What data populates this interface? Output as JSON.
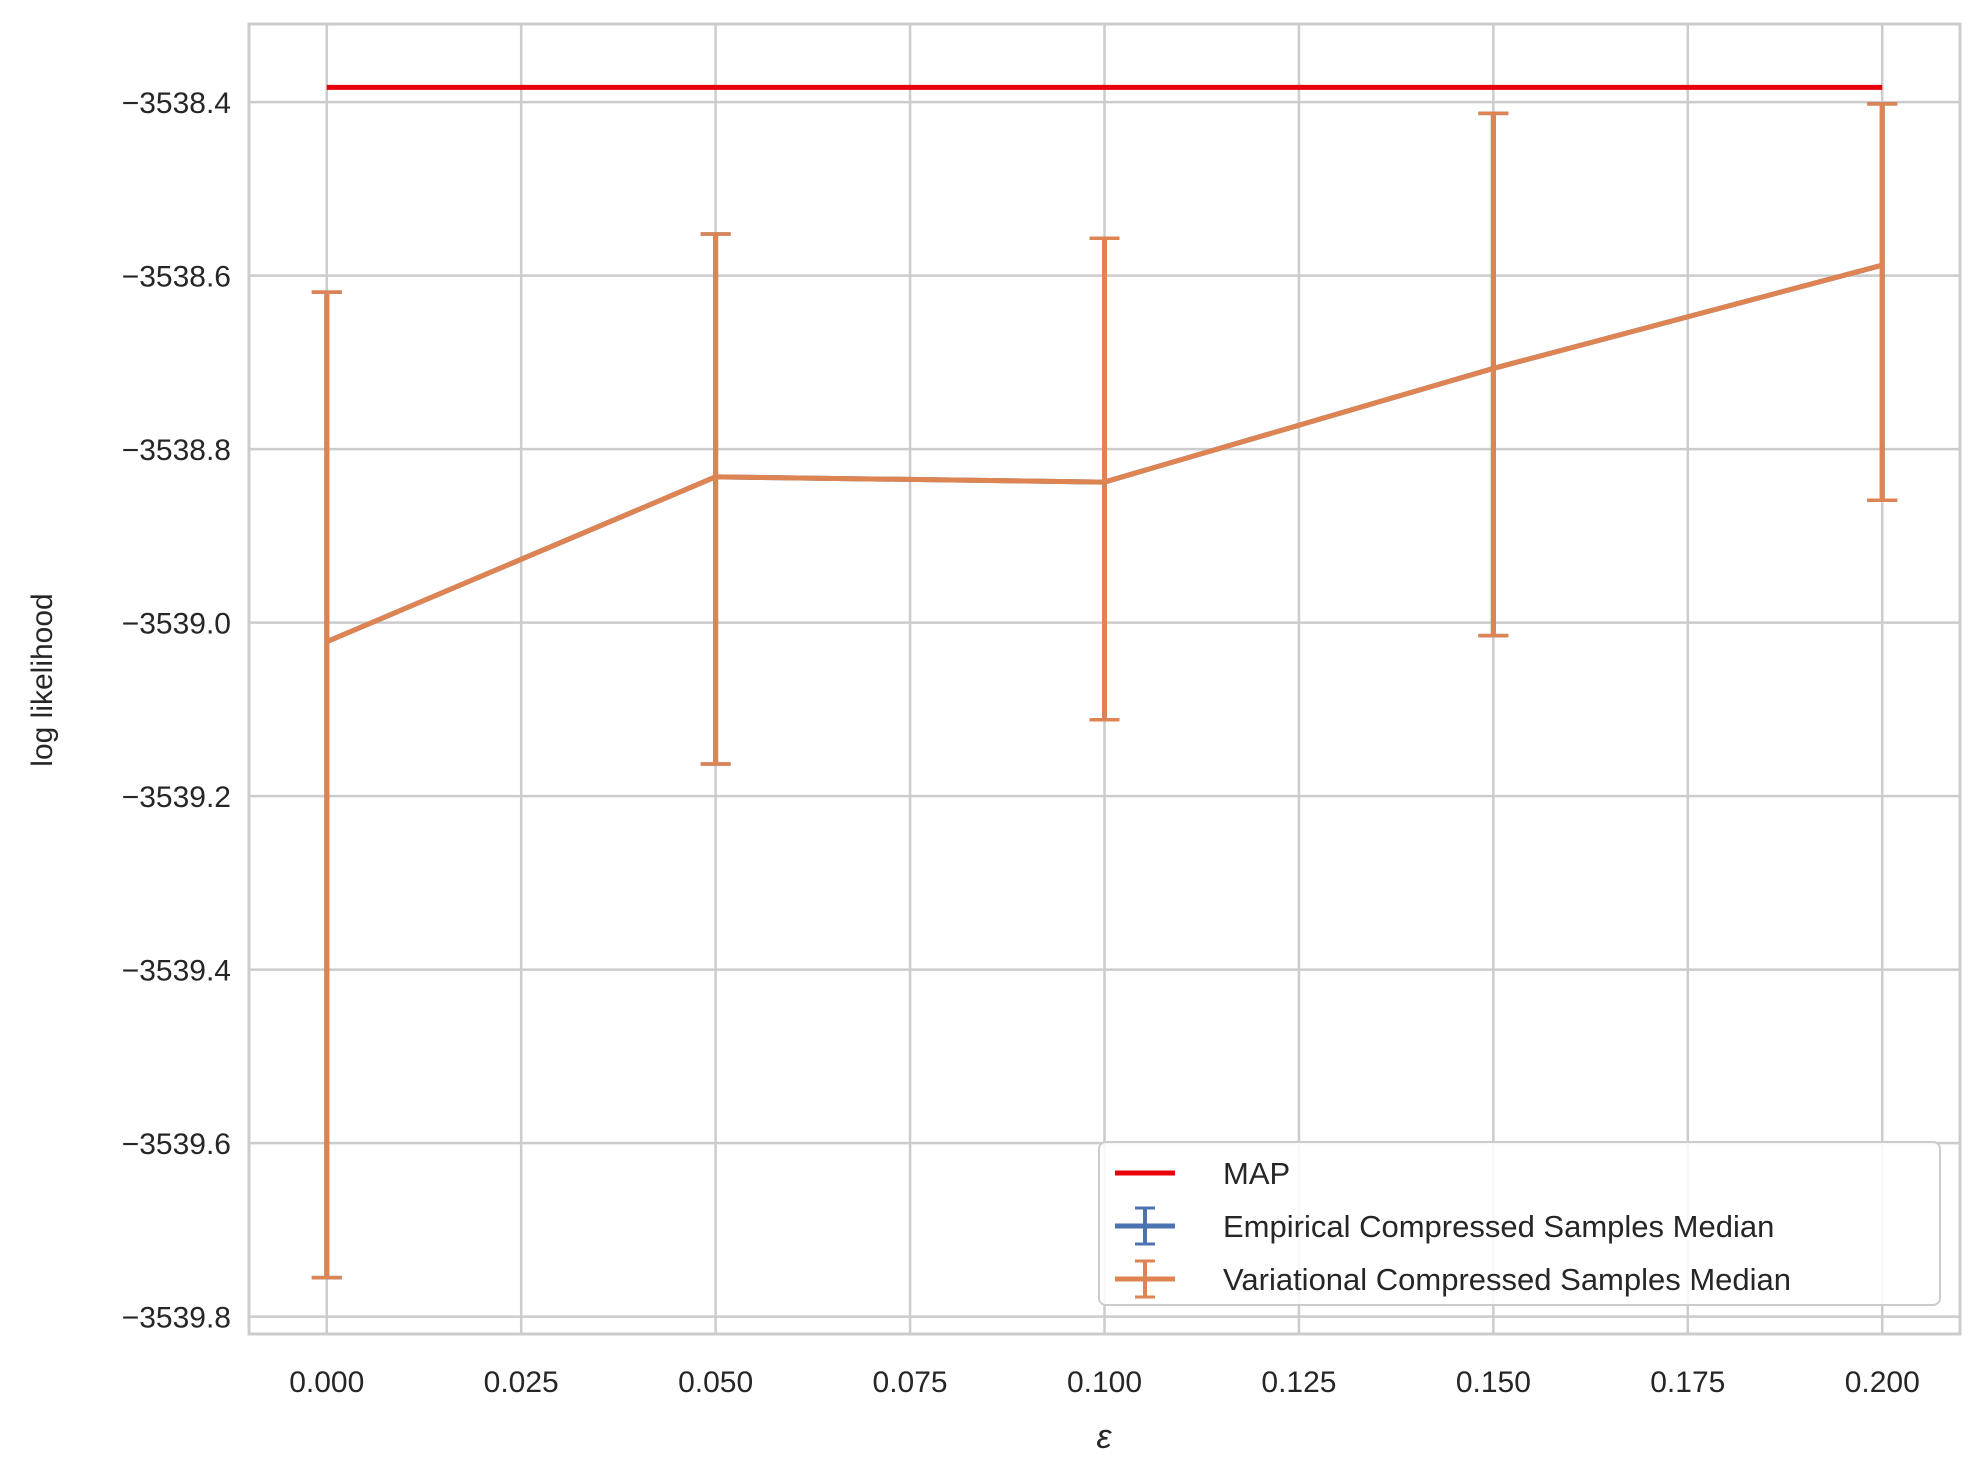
{
  "chart_data": {
    "type": "line",
    "title": "",
    "xlabel": "ε",
    "ylabel": "log likelihood",
    "xlim": [
      -0.01,
      0.21
    ],
    "ylim": [
      -3539.82,
      -3538.31
    ],
    "x_ticks": [
      0.0,
      0.025,
      0.05,
      0.075,
      0.1,
      0.125,
      0.15,
      0.175,
      0.2
    ],
    "x_tick_labels": [
      "0.000",
      "0.025",
      "0.050",
      "0.075",
      "0.100",
      "0.125",
      "0.150",
      "0.175",
      "0.200"
    ],
    "y_ticks": [
      -3538.4,
      -3538.6,
      -3538.8,
      -3539.0,
      -3539.2,
      -3539.4,
      -3539.6,
      -3539.8
    ],
    "y_tick_labels": [
      "−3538.4",
      "−3538.6",
      "−3538.8",
      "−3539.0",
      "−3539.2",
      "−3539.4",
      "−3539.6",
      "−3539.8"
    ],
    "grid": true,
    "legend_position": "lower-right",
    "series": [
      {
        "name": "MAP",
        "color": "#e8000b",
        "kind": "line",
        "x": [
          0.0,
          0.2
        ],
        "y": [
          -3538.383,
          -3538.383
        ]
      },
      {
        "name": "Empirical Compressed Samples Median",
        "color": "#4c72b0",
        "kind": "errorbar",
        "x": [
          0.0,
          0.05,
          0.1,
          0.15,
          0.2
        ],
        "y": [
          -3539.022,
          -3538.832,
          -3538.838,
          -3538.707,
          -3538.588
        ],
        "yerr_low": [
          -3539.755,
          -3539.163,
          -3539.112,
          -3539.015,
          -3538.859
        ],
        "yerr_high": [
          -3538.619,
          -3538.552,
          -3538.557,
          -3538.413,
          -3538.402
        ]
      },
      {
        "name": "Variational Compressed Samples Median",
        "color": "#dd8452",
        "kind": "errorbar",
        "x": [
          0.0,
          0.05,
          0.1,
          0.15,
          0.2
        ],
        "y": [
          -3539.022,
          -3538.832,
          -3538.838,
          -3538.707,
          -3538.588
        ],
        "yerr_low": [
          -3539.755,
          -3539.163,
          -3539.112,
          -3539.015,
          -3538.859
        ],
        "yerr_high": [
          -3538.619,
          -3538.552,
          -3538.557,
          -3538.413,
          -3538.402
        ]
      }
    ]
  }
}
